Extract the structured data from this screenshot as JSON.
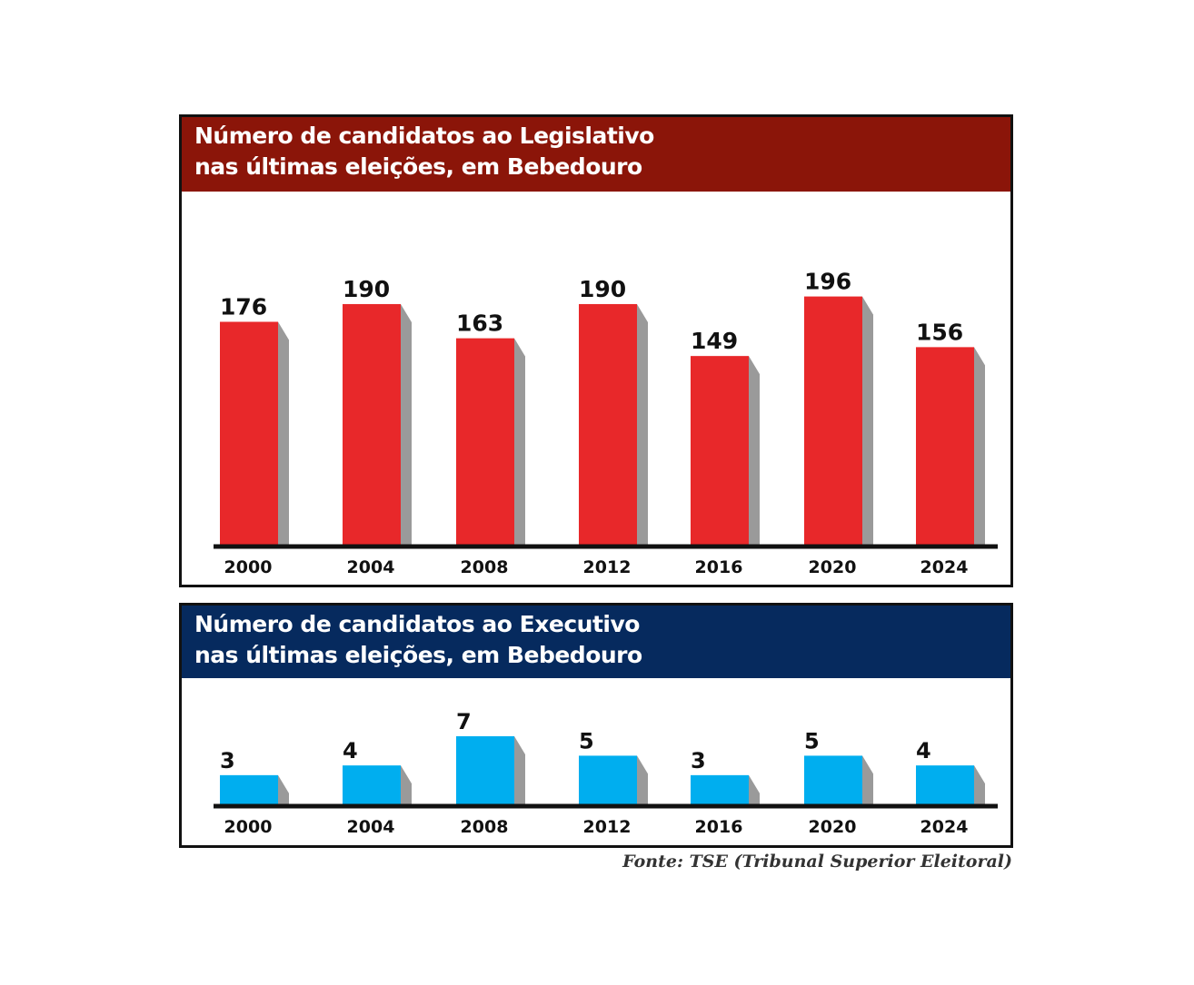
{
  "colors": {
    "legislativo_banner": "#8b1509",
    "legislativo_bar": "#e8282a",
    "executivo_banner": "#062a5e",
    "executivo_bar": "#00aeef",
    "shadow": "#9a9a9a",
    "axis": "#111111"
  },
  "chart_data": [
    {
      "type": "bar",
      "title_line1": "Número de candidatos ao Legislativo",
      "title_line2": "nas últimas eleições, em Bebedouro",
      "categories": [
        "2000",
        "2004",
        "2008",
        "2012",
        "2016",
        "2020",
        "2024"
      ],
      "values": [
        176,
        190,
        163,
        190,
        149,
        196,
        156
      ],
      "ylim": [
        0,
        200
      ],
      "grid": false,
      "data_labels": true
    },
    {
      "type": "bar",
      "title_line1": "Número de candidatos ao Executivo",
      "title_line2": "nas últimas eleições, em Bebedouro",
      "categories": [
        "2000",
        "2004",
        "2008",
        "2012",
        "2016",
        "2020",
        "2024"
      ],
      "values": [
        3,
        4,
        7,
        5,
        3,
        5,
        4
      ],
      "ylim": [
        0,
        7
      ],
      "grid": false,
      "data_labels": true
    }
  ],
  "source": "Fonte: TSE (Tribunal Superior Eleitoral)"
}
